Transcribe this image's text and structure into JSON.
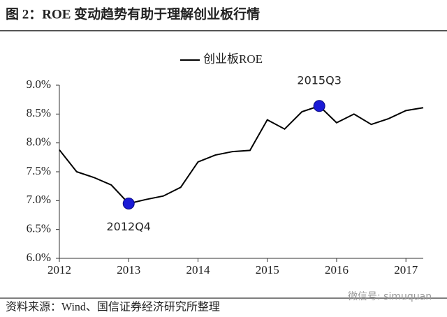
{
  "chart_data": {
    "type": "line",
    "title": "图 2：ROE 变动趋势有助于理解创业板行情",
    "source": "资料来源：Wind、国信证券经济研究所整理",
    "watermark": "微信号: simuquan",
    "x": [
      2012,
      2012.25,
      2012.5,
      2012.75,
      2013,
      2013.25,
      2013.5,
      2013.75,
      2014,
      2014.25,
      2014.5,
      2014.75,
      2015,
      2015.25,
      2015.5,
      2015.75,
      2016,
      2016.25,
      2016.5,
      2016.75,
      2017,
      2017.25
    ],
    "series": [
      {
        "name": "创业板ROE",
        "color": "#000000",
        "values": [
          7.88,
          7.5,
          7.4,
          7.27,
          6.95,
          7.02,
          7.08,
          7.23,
          7.67,
          7.79,
          7.85,
          7.87,
          8.4,
          8.24,
          8.54,
          8.64,
          8.35,
          8.5,
          8.32,
          8.42,
          8.56,
          8.61
        ]
      }
    ],
    "annotations": [
      {
        "label": "2012Q4",
        "x": 2013,
        "y": 6.95,
        "color": "#1a1ad6"
      },
      {
        "label": "2015Q3",
        "x": 2015.75,
        "y": 8.64,
        "color": "#1a1ad6"
      }
    ],
    "xlim": [
      2012,
      2017.25
    ],
    "xticks": [
      2012,
      2013,
      2014,
      2015,
      2016,
      2017
    ],
    "ylim": [
      6,
      9
    ],
    "yticks": [
      {
        "value": 6,
        "label": "6.0%"
      },
      {
        "value": 6.5,
        "label": "6.5%"
      },
      {
        "value": 7,
        "label": "7.0%"
      },
      {
        "value": 7.5,
        "label": "7.5%"
      },
      {
        "value": 8,
        "label": "8.0%"
      },
      {
        "value": 8.5,
        "label": "8.5%"
      },
      {
        "value": 9,
        "label": "9.0%"
      }
    ],
    "legend": "top"
  }
}
